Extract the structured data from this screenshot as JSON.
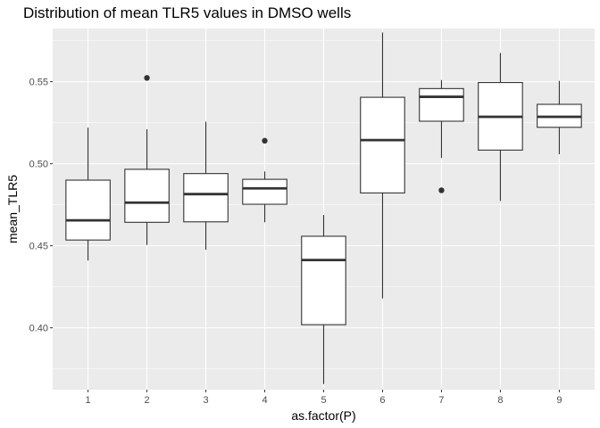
{
  "chart_data": {
    "type": "box",
    "title": "Distribution of mean TLR5 values in DMSO wells",
    "xlabel": "as.factor(P)",
    "ylabel": "mean_TLR5",
    "ylim": [
      0.3623,
      0.5824
    ],
    "yticks": [
      0.4,
      0.45,
      0.5,
      0.55
    ],
    "ytick_labels": [
      "0.40",
      "0.45",
      "0.50",
      "0.55"
    ],
    "grid": true,
    "colors": {
      "panel": "#ebebeb",
      "grid": "#ffffff",
      "box_fill": "#ffffff",
      "box_line": "#333333",
      "point": "#333333"
    },
    "categories": [
      "1",
      "2",
      "3",
      "4",
      "5",
      "6",
      "7",
      "8",
      "9"
    ],
    "boxes": [
      {
        "category": "1",
        "lower_whisker": 0.441,
        "q1": 0.4535,
        "median": 0.4655,
        "q3": 0.49,
        "upper_whisker": 0.522,
        "outliers": []
      },
      {
        "category": "2",
        "lower_whisker": 0.4505,
        "q1": 0.4643,
        "median": 0.4763,
        "q3": 0.4966,
        "upper_whisker": 0.521,
        "outliers": [
          0.5523
        ]
      },
      {
        "category": "3",
        "lower_whisker": 0.4476,
        "q1": 0.4646,
        "median": 0.4815,
        "q3": 0.494,
        "upper_whisker": 0.5256,
        "outliers": []
      },
      {
        "category": "4",
        "lower_whisker": 0.4643,
        "q1": 0.4753,
        "median": 0.485,
        "q3": 0.4905,
        "upper_whisker": 0.4953,
        "outliers": [
          0.514
        ]
      },
      {
        "category": "5",
        "lower_whisker": 0.3657,
        "q1": 0.4019,
        "median": 0.4413,
        "q3": 0.4558,
        "upper_whisker": 0.4688,
        "outliers": []
      },
      {
        "category": "6",
        "lower_whisker": 0.4179,
        "q1": 0.4822,
        "median": 0.5144,
        "q3": 0.5405,
        "upper_whisker": 0.58,
        "outliers": []
      },
      {
        "category": "7",
        "lower_whisker": 0.5035,
        "q1": 0.5259,
        "median": 0.5408,
        "q3": 0.5458,
        "upper_whisker": 0.551,
        "outliers": [
          0.4838
        ]
      },
      {
        "category": "8",
        "lower_whisker": 0.4773,
        "q1": 0.5083,
        "median": 0.5286,
        "q3": 0.5495,
        "upper_whisker": 0.5675,
        "outliers": []
      },
      {
        "category": "9",
        "lower_whisker": 0.5058,
        "q1": 0.5222,
        "median": 0.5286,
        "q3": 0.5362,
        "upper_whisker": 0.5505,
        "outliers": []
      }
    ]
  }
}
